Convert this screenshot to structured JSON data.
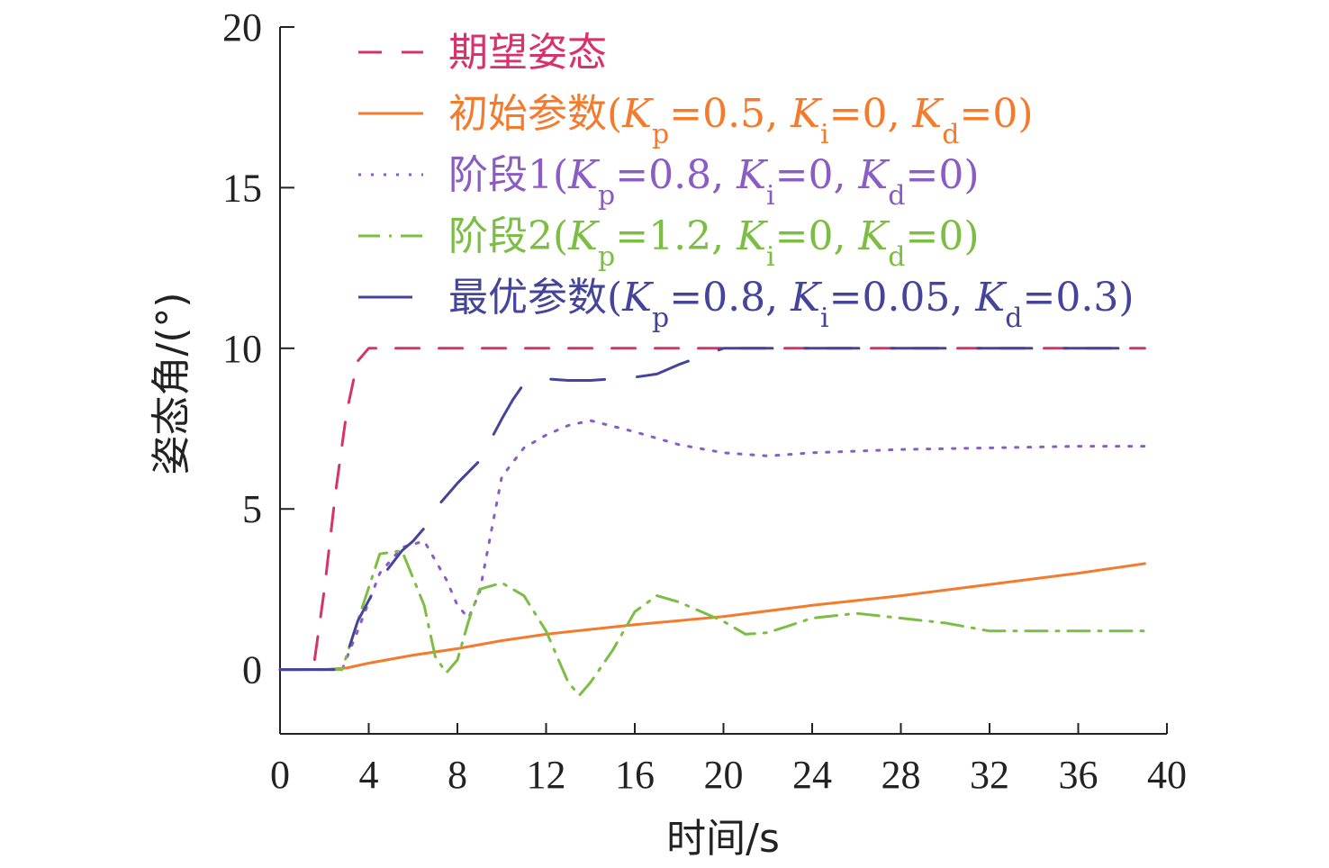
{
  "chart_data": {
    "type": "line",
    "xlabel": "时间/s",
    "ylabel": "姿态角/(°)",
    "xlim": [
      0,
      40
    ],
    "ylim": [
      -2,
      20
    ],
    "xticks": [
      0,
      4,
      8,
      12,
      16,
      20,
      24,
      28,
      32,
      36,
      40
    ],
    "yticks": [
      0,
      5,
      10,
      15,
      20
    ],
    "grid": false,
    "legend_position": "top",
    "series": [
      {
        "name": "期望姿态",
        "legend_parts": [
          {
            "t": "期望姿态"
          }
        ],
        "color": "#d6336c",
        "dash": "26,22",
        "x": [
          0,
          1.5,
          2.0,
          2.5,
          3.0,
          3.5,
          4.0,
          10,
          20,
          30,
          39
        ],
        "y": [
          0,
          0,
          2.5,
          5.5,
          8.0,
          9.6,
          10,
          10,
          10,
          10,
          10
        ]
      },
      {
        "name": "初始参数(Kp=0.5, Ki=0, Kd=0)",
        "legend_parts": [
          {
            "t": "初始参数("
          },
          {
            "t": "K",
            "i": true
          },
          {
            "t": "p",
            "sub": true
          },
          {
            "t": "=0.5, "
          },
          {
            "t": "K",
            "i": true
          },
          {
            "t": "i",
            "sub": true
          },
          {
            "t": "=0, "
          },
          {
            "t": "K",
            "i": true
          },
          {
            "t": "d",
            "sub": true
          },
          {
            "t": "=0)"
          }
        ],
        "color": "#f47a2c",
        "dash": "",
        "x": [
          0,
          2,
          3,
          4,
          6,
          8,
          10,
          12,
          14,
          16,
          20,
          24,
          28,
          32,
          36,
          39
        ],
        "y": [
          0,
          0,
          0.05,
          0.2,
          0.45,
          0.65,
          0.9,
          1.1,
          1.25,
          1.4,
          1.65,
          2.0,
          2.3,
          2.65,
          3.0,
          3.3
        ]
      },
      {
        "name": "阶段1(Kp=0.8, Ki=0, Kd=0)",
        "legend_parts": [
          {
            "t": "阶段1("
          },
          {
            "t": "K",
            "i": true
          },
          {
            "t": "p",
            "sub": true
          },
          {
            "t": "=0.8, "
          },
          {
            "t": "K",
            "i": true
          },
          {
            "t": "i",
            "sub": true
          },
          {
            "t": "=0, "
          },
          {
            "t": "K",
            "i": true
          },
          {
            "t": "d",
            "sub": true
          },
          {
            "t": "=0)"
          }
        ],
        "color": "#8a5cc4",
        "dash": "3,11",
        "x": [
          0,
          2.8,
          3.5,
          4.5,
          5.5,
          6.5,
          7.5,
          8.0,
          8.5,
          9.0,
          9.5,
          10.0,
          11,
          12,
          13,
          14,
          16,
          18,
          20,
          22,
          24,
          28,
          32,
          36,
          39
        ],
        "y": [
          0,
          0,
          1.2,
          3.0,
          3.8,
          4.0,
          2.8,
          2.0,
          1.6,
          2.4,
          4.2,
          6.0,
          6.9,
          7.3,
          7.6,
          7.75,
          7.4,
          7.0,
          6.75,
          6.65,
          6.75,
          6.85,
          6.9,
          6.95,
          6.95
        ]
      },
      {
        "name": "阶段2(Kp=1.2, Ki=0, Kd=0)",
        "legend_parts": [
          {
            "t": "阶段2("
          },
          {
            "t": "K",
            "i": true
          },
          {
            "t": "p",
            "sub": true
          },
          {
            "t": "=1.2, "
          },
          {
            "t": "K",
            "i": true
          },
          {
            "t": "i",
            "sub": true
          },
          {
            "t": "=0, "
          },
          {
            "t": "K",
            "i": true
          },
          {
            "t": "d",
            "sub": true
          },
          {
            "t": "=0)"
          }
        ],
        "color": "#7cbd43",
        "dash": "24,10,3,10",
        "x": [
          0,
          2.8,
          3.5,
          4.5,
          5.5,
          6.5,
          7.0,
          7.5,
          8.0,
          8.5,
          9.0,
          10.0,
          11,
          12,
          13,
          13.5,
          14,
          15,
          16,
          17,
          18,
          20,
          21,
          22,
          24,
          26,
          28,
          30,
          32,
          36,
          39
        ],
        "y": [
          0,
          0,
          1.5,
          3.6,
          3.7,
          2.0,
          0.4,
          -0.1,
          0.3,
          1.5,
          2.5,
          2.7,
          2.3,
          1.2,
          -0.4,
          -0.8,
          -0.4,
          0.6,
          1.8,
          2.3,
          2.1,
          1.5,
          1.1,
          1.15,
          1.6,
          1.75,
          1.6,
          1.45,
          1.2,
          1.2,
          1.2
        ]
      },
      {
        "name": "最优参数(Kp=0.8, Ki=0.05, Kd=0.3)",
        "legend_parts": [
          {
            "t": "最优参数("
          },
          {
            "t": "K",
            "i": true
          },
          {
            "t": "p",
            "sub": true
          },
          {
            "t": "=0.8, "
          },
          {
            "t": "K",
            "i": true
          },
          {
            "t": "i",
            "sub": true
          },
          {
            "t": "=0.05, "
          },
          {
            "t": "K",
            "i": true
          },
          {
            "t": "d",
            "sub": true
          },
          {
            "t": "=0.3)"
          }
        ],
        "color": "#44459a",
        "dash": "60,36",
        "x": [
          0,
          2.8,
          3.5,
          4.5,
          5.5,
          6.0,
          6.5,
          7.0,
          8.0,
          9.0,
          10.0,
          10.5,
          11,
          12,
          13,
          14,
          16,
          17,
          18,
          20,
          22,
          24,
          28,
          32,
          36,
          39
        ],
        "y": [
          0,
          0,
          1.5,
          2.8,
          3.7,
          4.0,
          4.4,
          5.0,
          5.8,
          6.5,
          7.8,
          8.4,
          8.9,
          9.05,
          9.0,
          9.0,
          9.1,
          9.2,
          9.5,
          10,
          10,
          10,
          10,
          10,
          10,
          10
        ]
      }
    ]
  }
}
